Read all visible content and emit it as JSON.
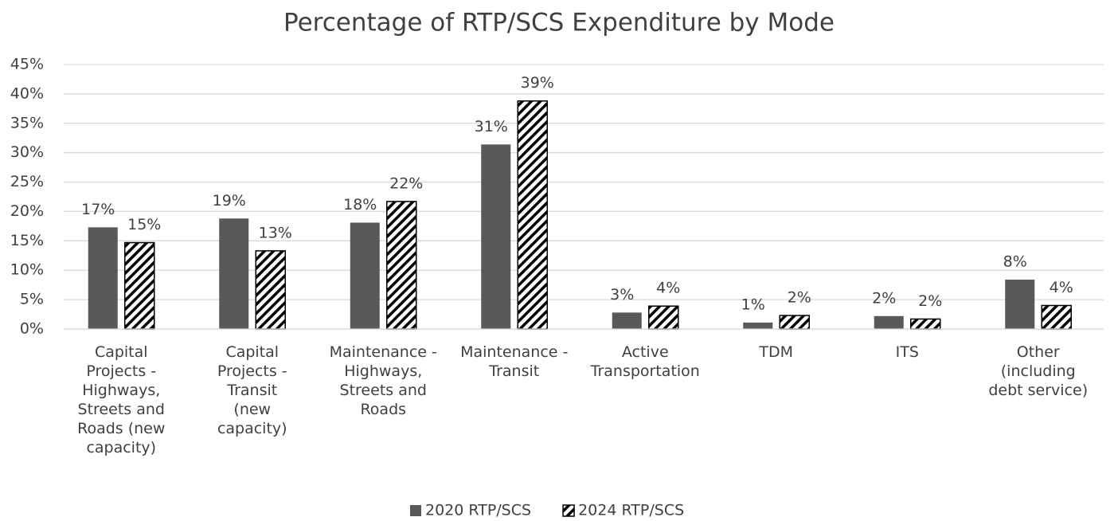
{
  "chart_data": {
    "type": "bar",
    "title": "Percentage of RTP/SCS Expenditure by Mode",
    "categories": [
      "Capital Projects - Highways, Streets and Roads (new capacity)",
      "Capital Projects - Transit (new capacity)",
      "Maintenance - Highways, Streets and Roads",
      "Maintenance - Transit",
      "Active Transportation",
      "TDM",
      "ITS",
      "Other (including debt service)"
    ],
    "series": [
      {
        "name": "2020 RTP/SCS",
        "color": "#595959",
        "pattern": "solid",
        "values": [
          17.3,
          18.8,
          18.1,
          31.4,
          2.8,
          1.1,
          2.2,
          8.4
        ],
        "value_labels": [
          "17%",
          "19%",
          "18%",
          "31%",
          "3%",
          "1%",
          "2%",
          "8%"
        ]
      },
      {
        "name": "2024 RTP/SCS",
        "color": "#000000",
        "pattern": "hatch",
        "values": [
          14.7,
          13.3,
          21.7,
          38.8,
          3.9,
          2.3,
          1.7,
          4.0
        ],
        "value_labels": [
          "15%",
          "13%",
          "22%",
          "39%",
          "4%",
          "2%",
          "2%",
          "4%"
        ]
      }
    ],
    "ylim": [
      0,
      45
    ],
    "yticks": [
      {
        "value": 0,
        "label": "0%"
      },
      {
        "value": 5,
        "label": "5%"
      },
      {
        "value": 10,
        "label": "10%"
      },
      {
        "value": 15,
        "label": "15%"
      },
      {
        "value": 20,
        "label": "20%"
      },
      {
        "value": 25,
        "label": "25%"
      },
      {
        "value": 30,
        "label": "30%"
      },
      {
        "value": 35,
        "label": "35%"
      },
      {
        "value": 40,
        "label": "40%"
      },
      {
        "value": 45,
        "label": "45%"
      }
    ],
    "grid": true,
    "legend": "bottom"
  }
}
